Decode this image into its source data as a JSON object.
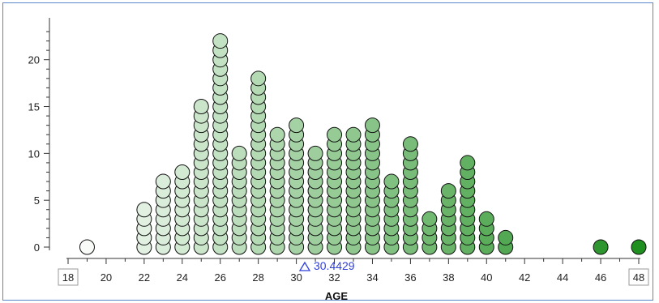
{
  "chart_data": {
    "type": "dot plot",
    "xlabel": "AGE",
    "x_ticks": [
      18,
      20,
      22,
      24,
      26,
      28,
      30,
      32,
      34,
      36,
      38,
      40,
      42,
      44,
      46,
      48
    ],
    "x_range": [
      18,
      48
    ],
    "boxed_tick_labels": [
      "18",
      "48"
    ],
    "y_ticks": [
      0,
      5,
      10,
      15,
      20
    ],
    "y_range": [
      0,
      23
    ],
    "mean_marker": {
      "value": 30.4429,
      "label": "30.4429"
    },
    "stacks": [
      {
        "x": 19,
        "top_count": 0
      },
      {
        "x": 22,
        "top_count": 4
      },
      {
        "x": 23,
        "top_count": 7
      },
      {
        "x": 24,
        "top_count": 8
      },
      {
        "x": 25,
        "top_count": 15
      },
      {
        "x": 26,
        "top_count": 22
      },
      {
        "x": 27,
        "top_count": 10
      },
      {
        "x": 28,
        "top_count": 18
      },
      {
        "x": 29,
        "top_count": 12
      },
      {
        "x": 30,
        "top_count": 13
      },
      {
        "x": 31,
        "top_count": 10
      },
      {
        "x": 32,
        "top_count": 12
      },
      {
        "x": 33,
        "top_count": 12
      },
      {
        "x": 34,
        "top_count": 13
      },
      {
        "x": 35,
        "top_count": 7
      },
      {
        "x": 36,
        "top_count": 11
      },
      {
        "x": 37,
        "top_count": 3
      },
      {
        "x": 38,
        "top_count": 6
      },
      {
        "x": 39,
        "top_count": 9
      },
      {
        "x": 40,
        "top_count": 3
      },
      {
        "x": 41,
        "top_count": 1
      },
      {
        "x": 46,
        "top_count": 0
      },
      {
        "x": 48,
        "top_count": 0
      }
    ],
    "color_gradient": {
      "low": "#ffffff",
      "high": "#1f8f1f",
      "outline": "#111111"
    }
  }
}
